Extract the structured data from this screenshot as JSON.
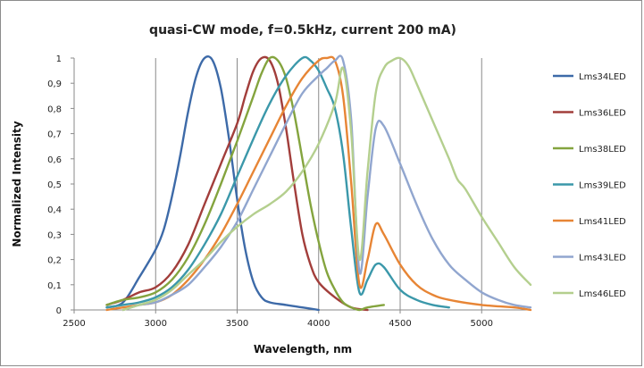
{
  "chart_data": {
    "type": "line",
    "title": "quasi-CW mode, f=0.5kHz, current 200 mA)",
    "xlabel": "Wavelength, nm",
    "ylabel": "Normalized Intensity",
    "xlim": [
      2500,
      5300
    ],
    "ylim": [
      0,
      1
    ],
    "x_ticks": [
      "2500",
      "3000",
      "3500",
      "4000",
      "4500",
      "5000"
    ],
    "y_ticks": [
      "0",
      "0,1",
      "0,2",
      "0,3",
      "0,4",
      "0,5",
      "0,6",
      "0,7",
      "0,8",
      "0,9",
      "1"
    ],
    "grid": "vertical major",
    "legend_position": "right",
    "series": [
      {
        "name": "Lms34LED",
        "color": "#3d6aa8",
        "points": [
          [
            2700,
            0.01
          ],
          [
            2800,
            0.03
          ],
          [
            2900,
            0.13
          ],
          [
            3000,
            0.24
          ],
          [
            3050,
            0.32
          ],
          [
            3100,
            0.45
          ],
          [
            3150,
            0.61
          ],
          [
            3200,
            0.79
          ],
          [
            3250,
            0.93
          ],
          [
            3300,
            1.0
          ],
          [
            3350,
            0.99
          ],
          [
            3400,
            0.88
          ],
          [
            3450,
            0.68
          ],
          [
            3500,
            0.44
          ],
          [
            3550,
            0.24
          ],
          [
            3600,
            0.11
          ],
          [
            3650,
            0.05
          ],
          [
            3700,
            0.03
          ],
          [
            3800,
            0.02
          ],
          [
            3900,
            0.01
          ],
          [
            4000,
            0.0
          ]
        ]
      },
      {
        "name": "Lms36LED",
        "color": "#a23e3b",
        "points": [
          [
            2700,
            0.02
          ],
          [
            2800,
            0.04
          ],
          [
            2900,
            0.07
          ],
          [
            3000,
            0.09
          ],
          [
            3100,
            0.15
          ],
          [
            3200,
            0.26
          ],
          [
            3300,
            0.42
          ],
          [
            3400,
            0.58
          ],
          [
            3500,
            0.74
          ],
          [
            3550,
            0.85
          ],
          [
            3600,
            0.95
          ],
          [
            3650,
            1.0
          ],
          [
            3700,
            0.99
          ],
          [
            3750,
            0.9
          ],
          [
            3800,
            0.72
          ],
          [
            3850,
            0.5
          ],
          [
            3900,
            0.3
          ],
          [
            3950,
            0.18
          ],
          [
            4000,
            0.11
          ],
          [
            4100,
            0.05
          ],
          [
            4200,
            0.01
          ],
          [
            4300,
            0.0
          ]
        ]
      },
      {
        "name": "Lms38LED",
        "color": "#84a43e",
        "points": [
          [
            2700,
            0.02
          ],
          [
            2800,
            0.04
          ],
          [
            2900,
            0.05
          ],
          [
            3000,
            0.07
          ],
          [
            3100,
            0.12
          ],
          [
            3200,
            0.21
          ],
          [
            3300,
            0.34
          ],
          [
            3400,
            0.5
          ],
          [
            3500,
            0.67
          ],
          [
            3600,
            0.85
          ],
          [
            3650,
            0.94
          ],
          [
            3700,
            1.0
          ],
          [
            3750,
            0.99
          ],
          [
            3800,
            0.92
          ],
          [
            3850,
            0.78
          ],
          [
            3900,
            0.6
          ],
          [
            3950,
            0.42
          ],
          [
            4000,
            0.27
          ],
          [
            4050,
            0.15
          ],
          [
            4100,
            0.08
          ],
          [
            4150,
            0.03
          ],
          [
            4200,
            0.01
          ],
          [
            4250,
            0.0
          ],
          [
            4300,
            0.01
          ],
          [
            4400,
            0.02
          ]
        ]
      },
      {
        "name": "Lms39LED",
        "color": "#3b98aa",
        "points": [
          [
            2700,
            0.01
          ],
          [
            2800,
            0.02
          ],
          [
            2900,
            0.03
          ],
          [
            3000,
            0.05
          ],
          [
            3100,
            0.09
          ],
          [
            3200,
            0.16
          ],
          [
            3300,
            0.26
          ],
          [
            3400,
            0.38
          ],
          [
            3500,
            0.53
          ],
          [
            3600,
            0.68
          ],
          [
            3700,
            0.82
          ],
          [
            3800,
            0.93
          ],
          [
            3900,
            1.0
          ],
          [
            3950,
            0.99
          ],
          [
            4000,
            0.95
          ],
          [
            4050,
            0.88
          ],
          [
            4100,
            0.8
          ],
          [
            4150,
            0.62
          ],
          [
            4200,
            0.32
          ],
          [
            4250,
            0.07
          ],
          [
            4300,
            0.12
          ],
          [
            4350,
            0.18
          ],
          [
            4400,
            0.17
          ],
          [
            4500,
            0.08
          ],
          [
            4600,
            0.04
          ],
          [
            4700,
            0.02
          ],
          [
            4800,
            0.01
          ]
        ]
      },
      {
        "name": "Lms41LED",
        "color": "#e78535",
        "points": [
          [
            2700,
            0.0
          ],
          [
            2800,
            0.01
          ],
          [
            2900,
            0.02
          ],
          [
            3000,
            0.03
          ],
          [
            3100,
            0.06
          ],
          [
            3200,
            0.12
          ],
          [
            3300,
            0.2
          ],
          [
            3400,
            0.3
          ],
          [
            3500,
            0.42
          ],
          [
            3600,
            0.55
          ],
          [
            3700,
            0.68
          ],
          [
            3800,
            0.81
          ],
          [
            3900,
            0.92
          ],
          [
            4000,
            0.99
          ],
          [
            4050,
            1.0
          ],
          [
            4100,
            0.99
          ],
          [
            4150,
            0.85
          ],
          [
            4200,
            0.5
          ],
          [
            4250,
            0.1
          ],
          [
            4300,
            0.2
          ],
          [
            4350,
            0.34
          ],
          [
            4400,
            0.3
          ],
          [
            4500,
            0.18
          ],
          [
            4600,
            0.1
          ],
          [
            4700,
            0.06
          ],
          [
            4800,
            0.04
          ],
          [
            5000,
            0.02
          ],
          [
            5200,
            0.01
          ],
          [
            5300,
            0.0
          ]
        ]
      },
      {
        "name": "Lms43LED",
        "color": "#91a6cf",
        "points": [
          [
            2800,
            0.0
          ],
          [
            2900,
            0.02
          ],
          [
            3000,
            0.03
          ],
          [
            3100,
            0.06
          ],
          [
            3200,
            0.1
          ],
          [
            3300,
            0.17
          ],
          [
            3400,
            0.25
          ],
          [
            3500,
            0.35
          ],
          [
            3600,
            0.48
          ],
          [
            3700,
            0.61
          ],
          [
            3800,
            0.74
          ],
          [
            3900,
            0.86
          ],
          [
            4000,
            0.93
          ],
          [
            4050,
            0.96
          ],
          [
            4100,
            0.99
          ],
          [
            4150,
            0.99
          ],
          [
            4200,
            0.75
          ],
          [
            4250,
            0.15
          ],
          [
            4300,
            0.45
          ],
          [
            4350,
            0.72
          ],
          [
            4400,
            0.73
          ],
          [
            4500,
            0.58
          ],
          [
            4600,
            0.42
          ],
          [
            4700,
            0.28
          ],
          [
            4800,
            0.18
          ],
          [
            4900,
            0.12
          ],
          [
            5000,
            0.07
          ],
          [
            5100,
            0.04
          ],
          [
            5200,
            0.02
          ],
          [
            5300,
            0.01
          ]
        ]
      },
      {
        "name": "Lms46LED",
        "color": "#b4cf8e",
        "points": [
          [
            2800,
            0.0
          ],
          [
            2900,
            0.02
          ],
          [
            3000,
            0.04
          ],
          [
            3100,
            0.08
          ],
          [
            3200,
            0.14
          ],
          [
            3300,
            0.2
          ],
          [
            3400,
            0.27
          ],
          [
            3500,
            0.33
          ],
          [
            3600,
            0.38
          ],
          [
            3700,
            0.42
          ],
          [
            3800,
            0.47
          ],
          [
            3900,
            0.55
          ],
          [
            4000,
            0.66
          ],
          [
            4100,
            0.82
          ],
          [
            4150,
            0.96
          ],
          [
            4200,
            0.7
          ],
          [
            4250,
            0.2
          ],
          [
            4300,
            0.55
          ],
          [
            4350,
            0.86
          ],
          [
            4400,
            0.96
          ],
          [
            4450,
            0.99
          ],
          [
            4500,
            1.0
          ],
          [
            4550,
            0.97
          ],
          [
            4600,
            0.9
          ],
          [
            4700,
            0.75
          ],
          [
            4800,
            0.6
          ],
          [
            4850,
            0.52
          ],
          [
            4900,
            0.48
          ],
          [
            5000,
            0.37
          ],
          [
            5100,
            0.27
          ],
          [
            5200,
            0.17
          ],
          [
            5300,
            0.1
          ]
        ]
      }
    ]
  }
}
